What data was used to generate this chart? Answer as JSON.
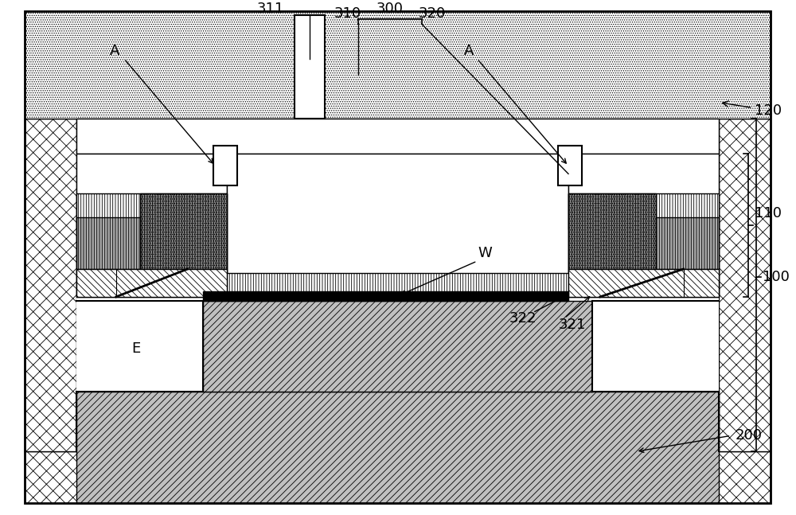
{
  "fig_width": 10.0,
  "fig_height": 6.47,
  "bg_color": "#ffffff",
  "labels": {
    "A_left": "A",
    "A_right": "A",
    "label_100": "100",
    "label_110": "110",
    "label_120": "120",
    "label_200": "200",
    "label_300": "300",
    "label_310": "310",
    "label_311": "311",
    "label_320": "320",
    "label_321": "321",
    "label_322": "322",
    "label_E": "E",
    "label_W": "W"
  }
}
